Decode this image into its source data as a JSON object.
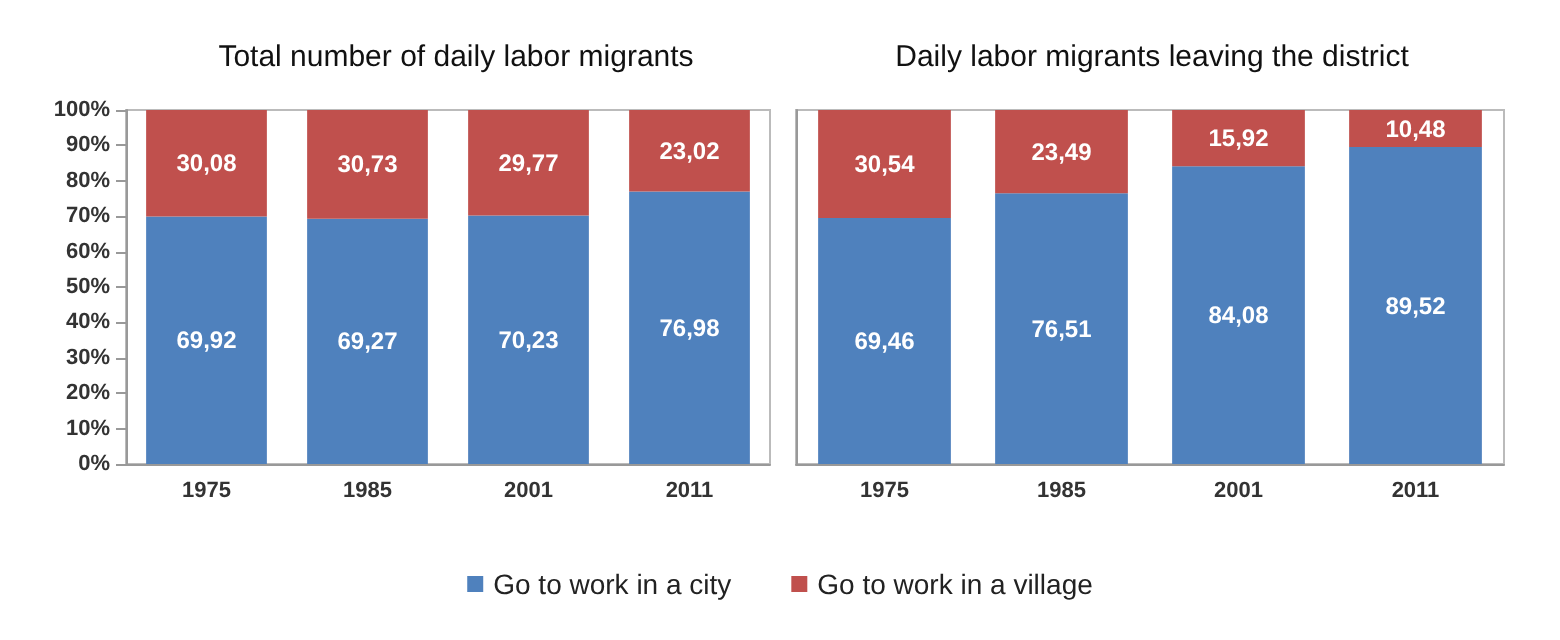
{
  "chart_data": [
    {
      "type": "bar",
      "title": "Total number of daily labor migrants",
      "categories": [
        "1975",
        "1985",
        "2001",
        "2011"
      ],
      "stacked": true,
      "ylim": [
        0,
        100
      ],
      "yticks": [
        {
          "value": 0,
          "label": "0%"
        },
        {
          "value": 10,
          "label": "10%"
        },
        {
          "value": 20,
          "label": "20%"
        },
        {
          "value": 30,
          "label": "30%"
        },
        {
          "value": 40,
          "label": "40%"
        },
        {
          "value": 50,
          "label": "50%"
        },
        {
          "value": 60,
          "label": "60%"
        },
        {
          "value": 70,
          "label": "70%"
        },
        {
          "value": 80,
          "label": "80%"
        },
        {
          "value": 90,
          "label": "90%"
        },
        {
          "value": 100,
          "label": "100%"
        }
      ],
      "legend": "bottom",
      "series": [
        {
          "name": "Go to work in a city",
          "color": "#4f81bd",
          "values": [
            69.92,
            69.27,
            70.23,
            76.98
          ],
          "value_labels": [
            "69,92",
            "69,27",
            "70,23",
            "76,98"
          ]
        },
        {
          "name": "Go to work in a village",
          "color": "#c0504d",
          "values": [
            30.08,
            30.73,
            29.77,
            23.02
          ],
          "value_labels": [
            "30,08",
            "30,73",
            "29,77",
            "23,02"
          ]
        }
      ]
    },
    {
      "type": "bar",
      "title": "Daily labor migrants leaving the district",
      "categories": [
        "1975",
        "1985",
        "2001",
        "2011"
      ],
      "stacked": true,
      "tick_labels": "x",
      "ylim": [
        0,
        100
      ],
      "series": [
        {
          "color": "#4f81bd",
          "values": [
            69.46,
            76.51,
            84.08,
            89.52
          ],
          "value_labels": [
            "69,46",
            "76,51",
            "84,08",
            "89,52"
          ]
        },
        {
          "color": "#c0504d",
          "values": [
            30.54,
            23.49,
            15.92,
            10.48
          ],
          "value_labels": [
            "30,54",
            "23,49",
            "15,92",
            "10,48"
          ]
        }
      ]
    }
  ]
}
